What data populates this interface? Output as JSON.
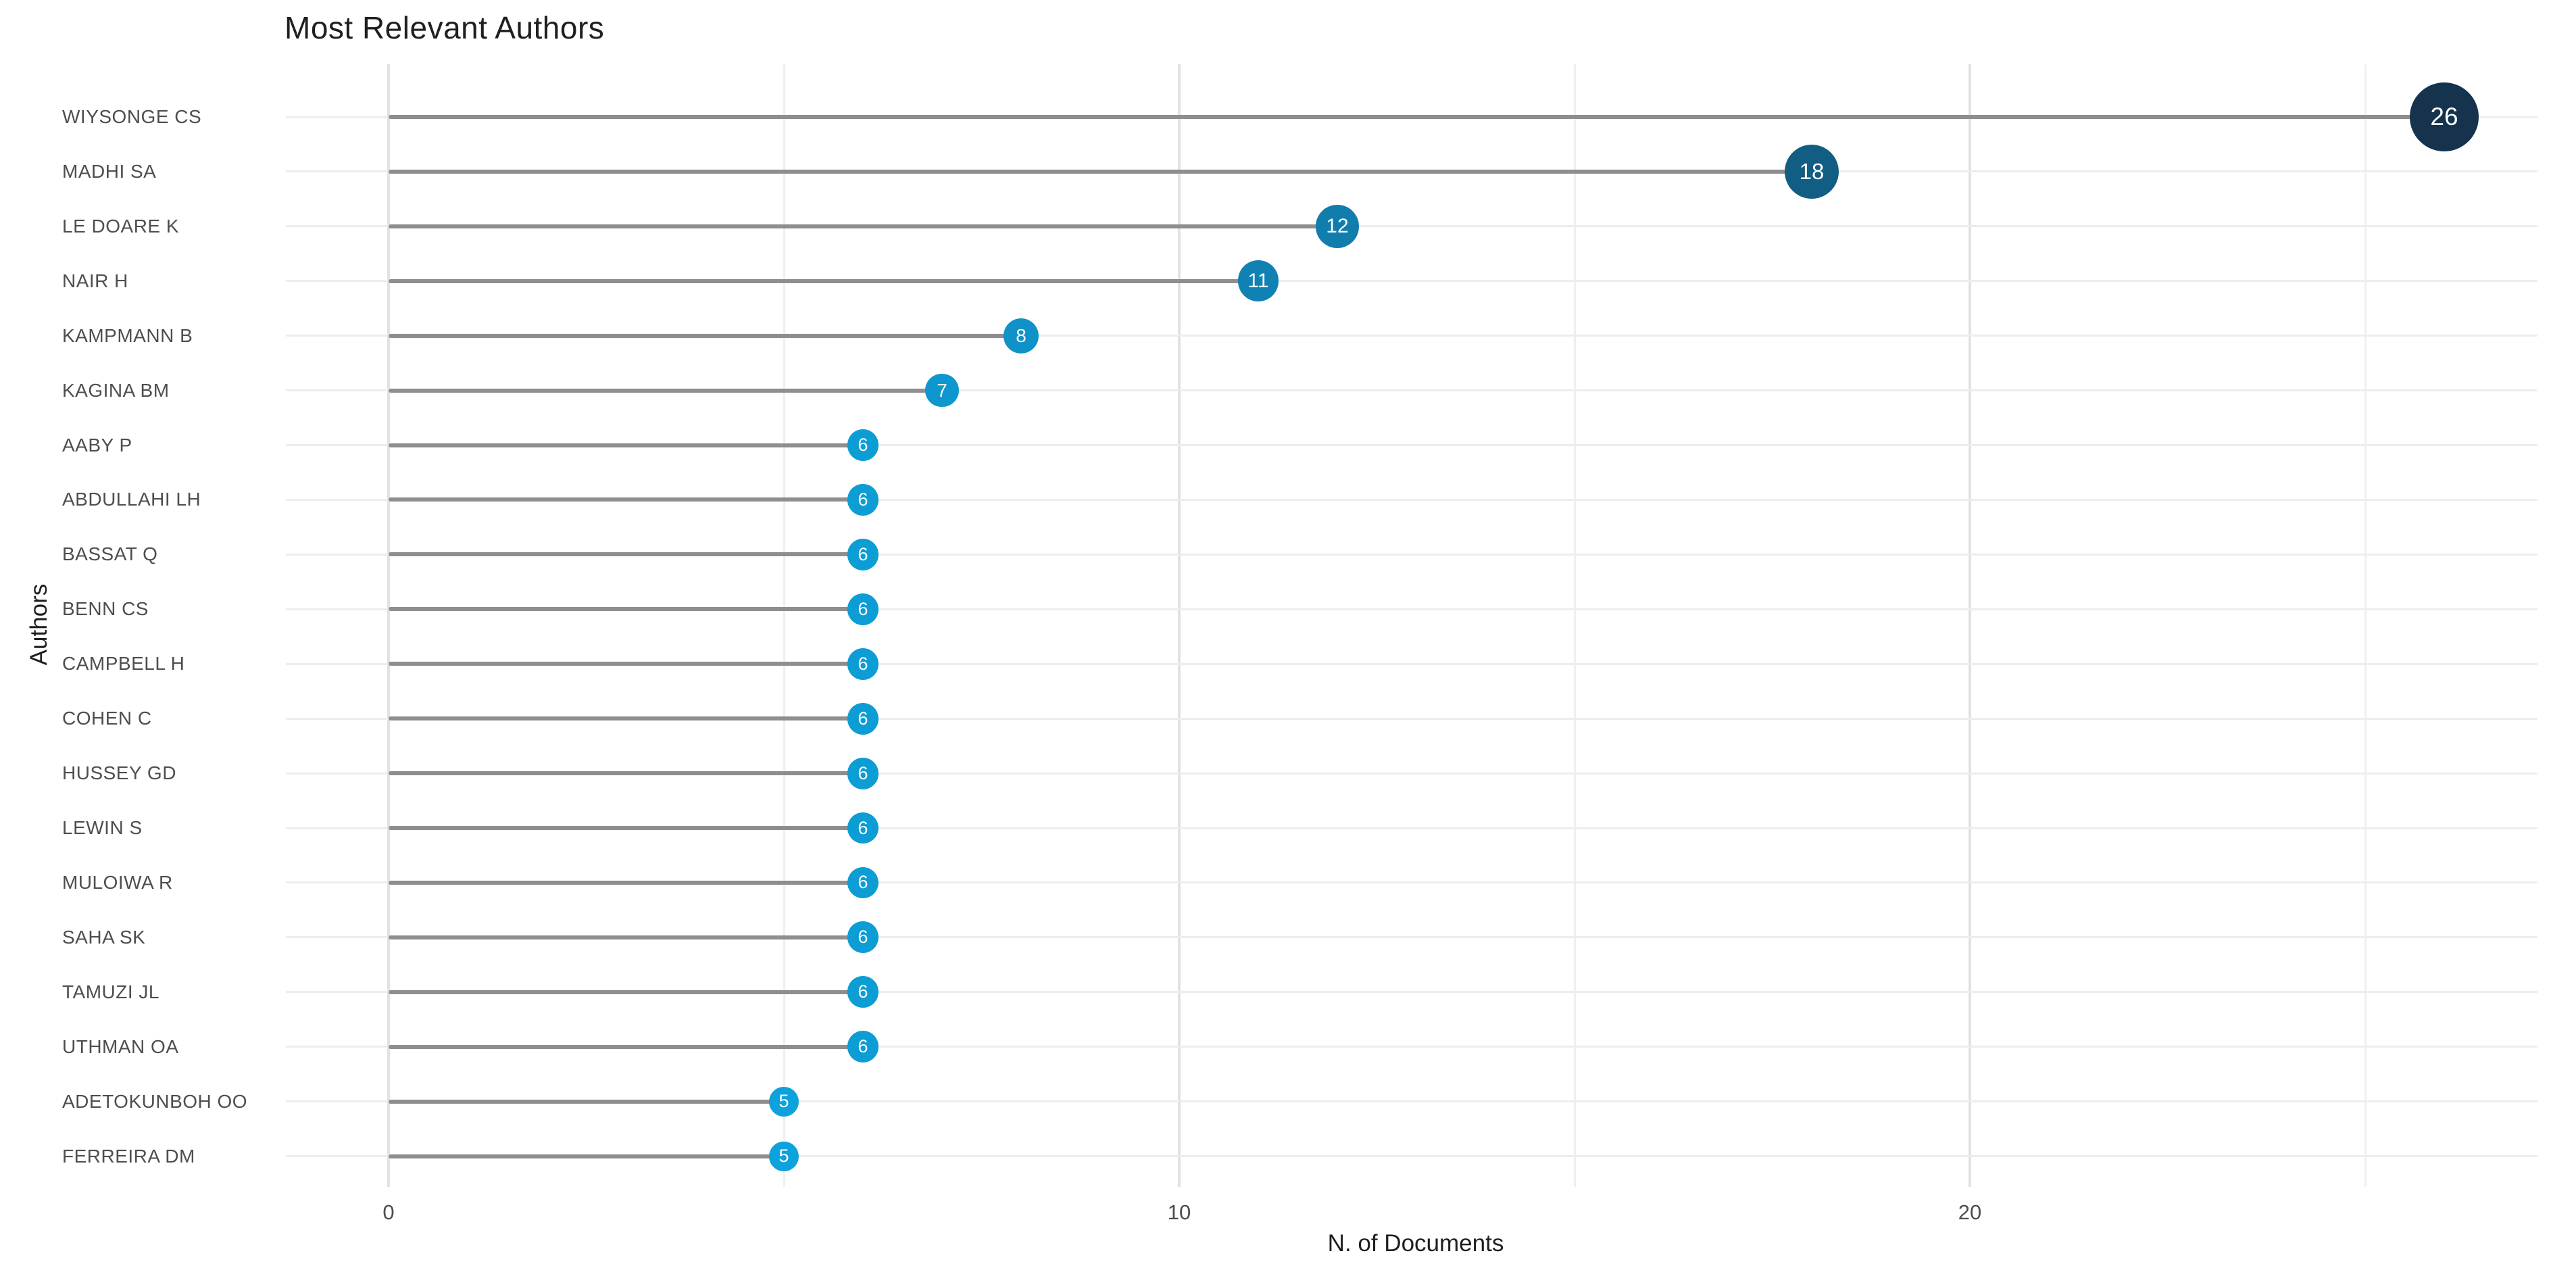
{
  "page": {
    "background": "#ffffff"
  },
  "chart_data": {
    "type": "bar",
    "subtype": "lollipop",
    "orientation": "horizontal",
    "title": "Most Relevant Authors",
    "xlabel": "N. of Documents",
    "ylabel": "Authors",
    "categories": [
      "WIYSONGE CS",
      "MADHI SA",
      "LE DOARE K",
      "NAIR H",
      "KAMPMANN B",
      "KAGINA BM",
      "AABY P",
      "ABDULLAHI LH",
      "BASSAT Q",
      "BENN CS",
      "CAMPBELL H",
      "COHEN C",
      "HUSSEY GD",
      "LEWIN S",
      "MULOIWA R",
      "SAHA SK",
      "TAMUZI JL",
      "UTHMAN OA",
      "ADETOKUNBOH OO",
      "FERREIRA DM"
    ],
    "values": [
      26,
      18,
      12,
      11,
      8,
      7,
      6,
      6,
      6,
      6,
      6,
      6,
      6,
      6,
      6,
      6,
      6,
      6,
      5,
      5
    ],
    "point_labels": [
      "26",
      "18",
      "12",
      "11",
      "8",
      "7",
      "6",
      "6",
      "6",
      "6",
      "6",
      "6",
      "6",
      "6",
      "6",
      "6",
      "6",
      "6",
      "5",
      "5"
    ],
    "xlim": [
      0,
      27.5
    ],
    "x_ticks_major": [
      0,
      10,
      20
    ],
    "x_ticks_minor": [
      5,
      15,
      25
    ],
    "grid": true,
    "legend": false,
    "colors": {
      "dot_low": "#0DA2DC",
      "dot_high": "#15334D",
      "dot_label": "#FFFFFF",
      "stem": "#8E8E8E",
      "grid_major": "#E2E2E2",
      "grid_minor": "#EFEFEF",
      "grid_row": "#EDEDED",
      "axis_tick_text": "#4D4D4D",
      "axis_title_text": "#1F1F1F",
      "title_text": "#1F1F1F",
      "background": "#FFFFFF"
    }
  }
}
